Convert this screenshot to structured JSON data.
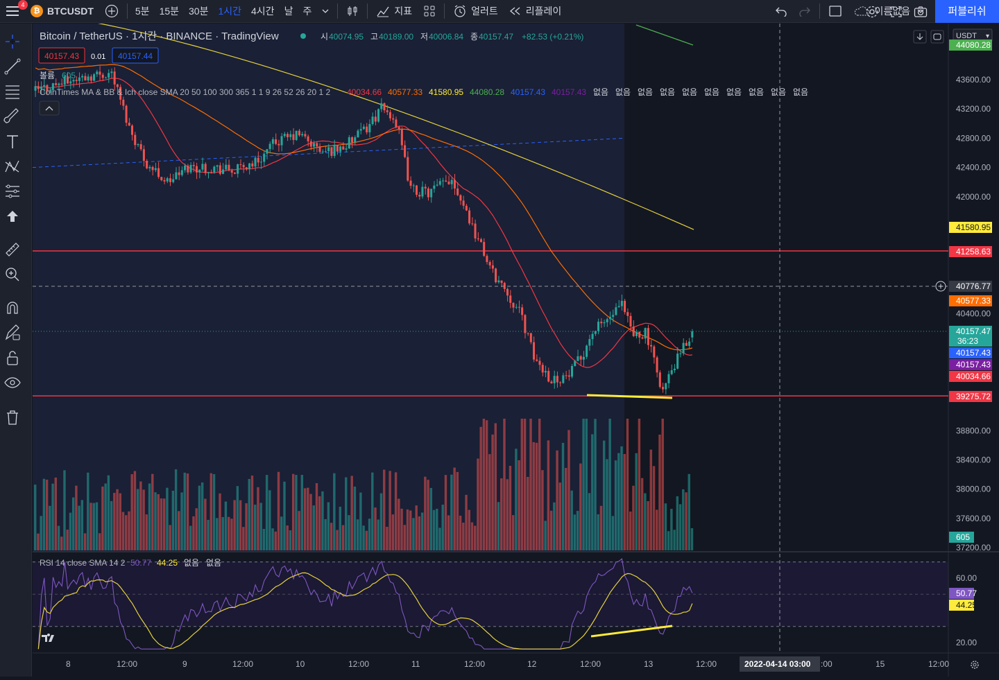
{
  "topbar": {
    "menu_badge": "4",
    "symbol": "BTCUSDT",
    "intervals": [
      {
        "label": "5분",
        "active": false
      },
      {
        "label": "15분",
        "active": false
      },
      {
        "label": "30분",
        "active": false
      },
      {
        "label": "1시간",
        "active": true
      },
      {
        "label": "4시간",
        "active": false
      },
      {
        "label": "날",
        "active": false
      },
      {
        "label": "주",
        "active": false
      }
    ],
    "indicators_label": "지표",
    "alert_label": "얼러트",
    "replay_label": "리플레이",
    "layout_name": "이름없음",
    "publish_label": "퍼블리쉬"
  },
  "legend": {
    "title": "Bitcoin / TetherUS · 1시간 · BINANCE · TradingView",
    "ohlc": {
      "o_label": "시",
      "o": "40074.95",
      "h_label": "고",
      "h": "40189.00",
      "l_label": "저",
      "l": "40006.84",
      "c_label": "종",
      "c": "40157.47",
      "change": "+82.53 (+0.21%)"
    },
    "bid": "40157.43",
    "spread": "0.01",
    "ask": "40157.44",
    "volume_label": "볼륨",
    "volume_value": "605",
    "indicator_name": "CoinTimes MA & BB & Ich close SMA 20 50 100 300 365 1 1 9 26 52 26 20 1 2",
    "indicator_values": [
      {
        "v": "40034.66",
        "color": "#f23645"
      },
      {
        "v": "40577.33",
        "color": "#ff6d00"
      },
      {
        "v": "41580.95",
        "color": "#ffeb3b"
      },
      {
        "v": "44080.28",
        "color": "#4caf50"
      },
      {
        "v": "40157.43",
        "color": "#2962ff"
      },
      {
        "v": "40157.43",
        "color": "#7b1fa2"
      }
    ],
    "none_label": "없음",
    "rsi_name": "RSI 14 close SMA 14 2",
    "rsi_value": "50.77",
    "rsi_sma_value": "44.25"
  },
  "price_axis": {
    "currency": "USDT",
    "ticks": [
      "43600.00",
      "43200.00",
      "42800.00",
      "42400.00",
      "42000.00",
      "40400.00",
      "38800.00",
      "38400.00",
      "38000.00",
      "37600.00",
      "37200.00"
    ],
    "labels": [
      {
        "text": "44080.28",
        "color": "#4caf50",
        "price": 44080.28
      },
      {
        "text": "41580.95",
        "color": "#ffeb3b",
        "price": 41580.95
      },
      {
        "text": "41258.63",
        "color": "#f23645",
        "price": 41258.63
      },
      {
        "text": "40776.77",
        "color": "#363a45",
        "price": 40776.77
      },
      {
        "text": "40577.33",
        "color": "#ff6d00",
        "price": 40577.33
      },
      {
        "text": "40157.47",
        "color": "#26a69a",
        "price": 40157.47
      },
      {
        "text": "40157.43",
        "color": "#2962ff",
        "price": 40157.43
      },
      {
        "text": "40157.43",
        "color": "#7b1fa2",
        "price": 40157.43
      },
      {
        "text": "40034.66",
        "color": "#f23645",
        "price": 40034.66
      },
      {
        "text": "39275.72",
        "color": "#f23645",
        "price": 39275.72
      }
    ],
    "countdown": "36:23",
    "volume_label": "605"
  },
  "rsi_axis": {
    "ticks": [
      "60.00",
      "20.00"
    ]
  },
  "time_axis": {
    "ticks": [
      "8",
      "12:00",
      "9",
      "12:00",
      "10",
      "12:00",
      "11",
      "12:00",
      "12",
      "12:00",
      "13",
      "12:00",
      "15",
      "12:00"
    ],
    "crosshair_label": "2022-04-14   03:00",
    "crosshair_suffix": ":00"
  },
  "colors": {
    "up": "#26a69a",
    "down": "#ef5350",
    "background": "#131722",
    "panel": "#1e222d",
    "accent": "#2962ff"
  },
  "chart_data": {
    "type": "candlestick",
    "ylim": [
      37000,
      44050
    ],
    "horizontal_lines": [
      41258.63,
      39275.72
    ],
    "crosshair_price": 40776.77,
    "candles": []
  }
}
